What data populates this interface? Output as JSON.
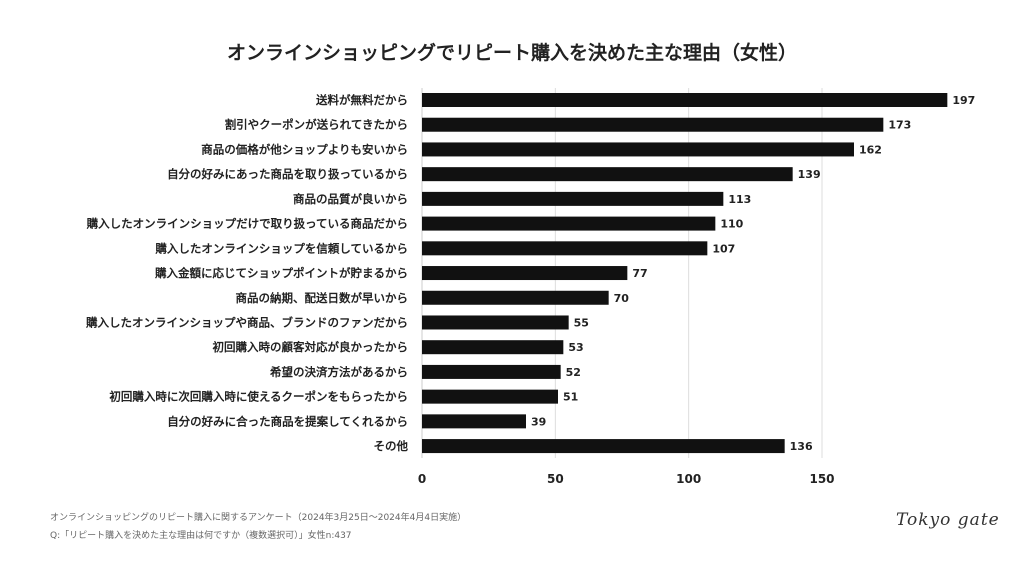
{
  "chart_data": {
    "type": "bar",
    "orientation": "horizontal",
    "title": "オンラインショッピングでリピート購入を決めた主な理由（女性）",
    "categories": [
      "送料が無料だから",
      "割引やクーポンが送られてきたから",
      "商品の価格が他ショップよりも安いから",
      "自分の好みにあった商品を取り扱っているから",
      "商品の品質が良いから",
      "購入したオンラインショップだけで取り扱っている商品だから",
      "購入したオンラインショップを信頼しているから",
      "購入金額に応じてショップポイントが貯まるから",
      "商品の納期、配送日数が早いから",
      "購入したオンラインショップや商品、ブランドのファンだから",
      "初回購入時の顧客対応が良かったから",
      "希望の決済方法があるから",
      "初回購入時に次回購入時に使えるクーポンをもらったから",
      "自分の好みに合った商品を提案してくれるから",
      "その他"
    ],
    "values": [
      197,
      173,
      162,
      139,
      113,
      110,
      107,
      77,
      70,
      55,
      53,
      52,
      51,
      39,
      136
    ],
    "xticks": [
      0,
      50,
      100,
      150
    ],
    "xlim": [
      0,
      200
    ],
    "grid": true,
    "bar_color": "#111111",
    "grid_color": "#dddddd"
  },
  "footnotes": {
    "survey": "オンラインショッピングのリピート購入に関するアンケート（2024年3月25日〜2024年4月4日実施）",
    "question": "Q:「リピート購入を決めた主な理由は何ですか（複数選択可）」女性n:437"
  },
  "logo": "Tokyo gate"
}
